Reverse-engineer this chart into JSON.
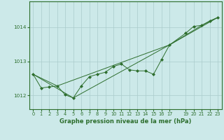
{
  "title": "Graphe pression niveau de la mer (hPa)",
  "background_color": "#cce9e9",
  "grid_color": "#aacccc",
  "line_color": "#2d6e2d",
  "marker_color": "#2d6e2d",
  "xlim": [
    -0.5,
    23.5
  ],
  "ylim": [
    1011.6,
    1014.75
  ],
  "yticks": [
    1012,
    1013,
    1014
  ],
  "xticks": [
    0,
    1,
    2,
    3,
    4,
    5,
    6,
    7,
    8,
    9,
    10,
    11,
    12,
    13,
    14,
    15,
    16,
    17,
    19,
    20,
    21,
    22,
    23
  ],
  "xtick_labels": [
    "0",
    "1",
    "2",
    "3",
    "4",
    "5",
    "6",
    "7",
    "8",
    "9",
    "10",
    "11",
    "12",
    "13",
    "14",
    "15",
    "16",
    "17",
    "19",
    "20",
    "21",
    "22",
    "23"
  ],
  "series1": [
    [
      0,
      1012.62
    ],
    [
      1,
      1012.22
    ],
    [
      2,
      1012.25
    ],
    [
      3,
      1012.28
    ],
    [
      4,
      1012.02
    ],
    [
      5,
      1011.93
    ],
    [
      6,
      1012.28
    ],
    [
      7,
      1012.55
    ],
    [
      8,
      1012.62
    ],
    [
      9,
      1012.68
    ],
    [
      10,
      1012.85
    ],
    [
      11,
      1012.92
    ],
    [
      12,
      1012.75
    ],
    [
      13,
      1012.72
    ],
    [
      14,
      1012.72
    ],
    [
      15,
      1012.62
    ],
    [
      16,
      1013.05
    ],
    [
      17,
      1013.48
    ],
    [
      19,
      1013.82
    ],
    [
      20,
      1014.02
    ],
    [
      21,
      1014.05
    ],
    [
      22,
      1014.18
    ],
    [
      23,
      1014.28
    ]
  ],
  "series2": [
    [
      0,
      1012.62
    ],
    [
      3,
      1012.28
    ],
    [
      17,
      1013.48
    ],
    [
      23,
      1014.28
    ]
  ],
  "series3": [
    [
      0,
      1012.62
    ],
    [
      5,
      1011.93
    ],
    [
      17,
      1013.48
    ],
    [
      21,
      1014.05
    ],
    [
      23,
      1014.28
    ]
  ],
  "ylabel_fontsize": 5.0,
  "xlabel_fontsize": 6.0,
  "tick_fontsize": 4.8,
  "ytick_fontsize": 5.2
}
